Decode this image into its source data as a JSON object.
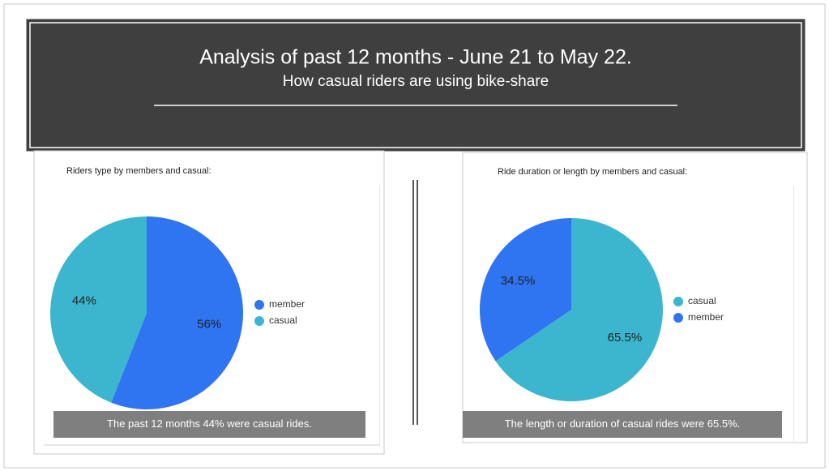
{
  "header": {
    "title": "Analysis of past 12 months - June 21 to May 22.",
    "subtitle": "How casual riders are using bike-share"
  },
  "chart_data": [
    {
      "type": "pie",
      "title": "Riders type by members and casual:",
      "categories": [
        "member",
        "casual"
      ],
      "values": [
        56,
        44
      ],
      "value_labels": [
        "56%",
        "44%"
      ],
      "colors": [
        "#2f74f0",
        "#3cb6ce"
      ],
      "annotation": "The past 12 months 44% were casual rides."
    },
    {
      "type": "pie",
      "title": "Ride duration or length by members and casual:",
      "categories": [
        "casual",
        "member"
      ],
      "values": [
        65.5,
        34.5
      ],
      "value_labels": [
        "65.5%",
        "34.5%"
      ],
      "colors": [
        "#3cb6ce",
        "#2f74f0"
      ],
      "annotation": "The length or duration of casual rides were 65.5%."
    }
  ]
}
